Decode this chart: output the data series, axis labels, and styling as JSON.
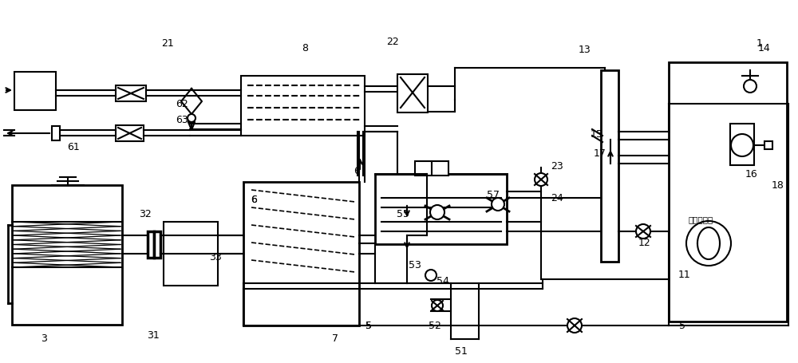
{
  "bg_color": "#ffffff",
  "line_color": "#000000",
  "lw": 1.5,
  "chinese_text": "待处理气体"
}
